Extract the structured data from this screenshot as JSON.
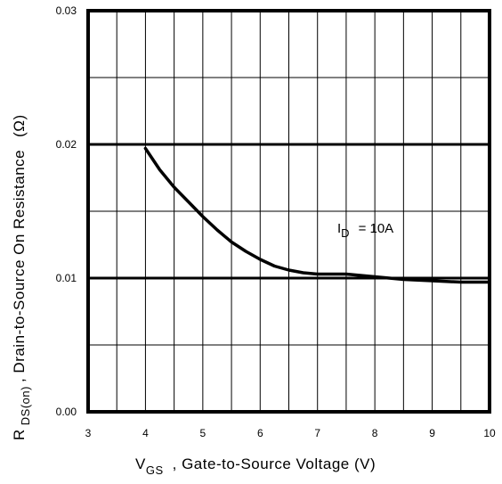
{
  "chart_data": {
    "type": "line",
    "title": "",
    "xlabel": {
      "symbol": "V",
      "subscript": "GS",
      "text": ", Gate-to-Source Voltage (V)"
    },
    "ylabel": {
      "symbol": "R",
      "subscript": "DS(on)",
      "text": ", Drain-to-Source On Resistance",
      "unit": "(Ω)"
    },
    "xlim": [
      3,
      10
    ],
    "ylim": [
      0,
      0.03
    ],
    "x_ticks": [
      "3",
      "4",
      "5",
      "6",
      "7",
      "8",
      "9",
      "10"
    ],
    "y_ticks": [
      "0.00",
      "0.01",
      "0.02",
      "0.03"
    ],
    "x_minor_step": 0.5,
    "y_minor_step": 0.005,
    "grid": true,
    "series": [
      {
        "points": [
          [
            4.0,
            0.0197
          ],
          [
            4.25,
            0.0181
          ],
          [
            4.5,
            0.0168
          ],
          [
            4.75,
            0.0157
          ],
          [
            5.0,
            0.0146
          ],
          [
            5.25,
            0.0136
          ],
          [
            5.5,
            0.0127
          ],
          [
            5.75,
            0.012
          ],
          [
            6.0,
            0.0114
          ],
          [
            6.25,
            0.0109
          ],
          [
            6.5,
            0.0106
          ],
          [
            6.75,
            0.0104
          ],
          [
            7.0,
            0.0103
          ],
          [
            7.5,
            0.0103
          ],
          [
            8.0,
            0.0101
          ],
          [
            8.5,
            0.0099
          ],
          [
            9.0,
            0.0098
          ],
          [
            9.5,
            0.0097
          ],
          [
            10.0,
            0.0097
          ]
        ]
      }
    ],
    "annotation": {
      "symbol": "I",
      "subscript": "D",
      "text": "= 10A",
      "x": 7.45,
      "y": 0.0138
    }
  }
}
